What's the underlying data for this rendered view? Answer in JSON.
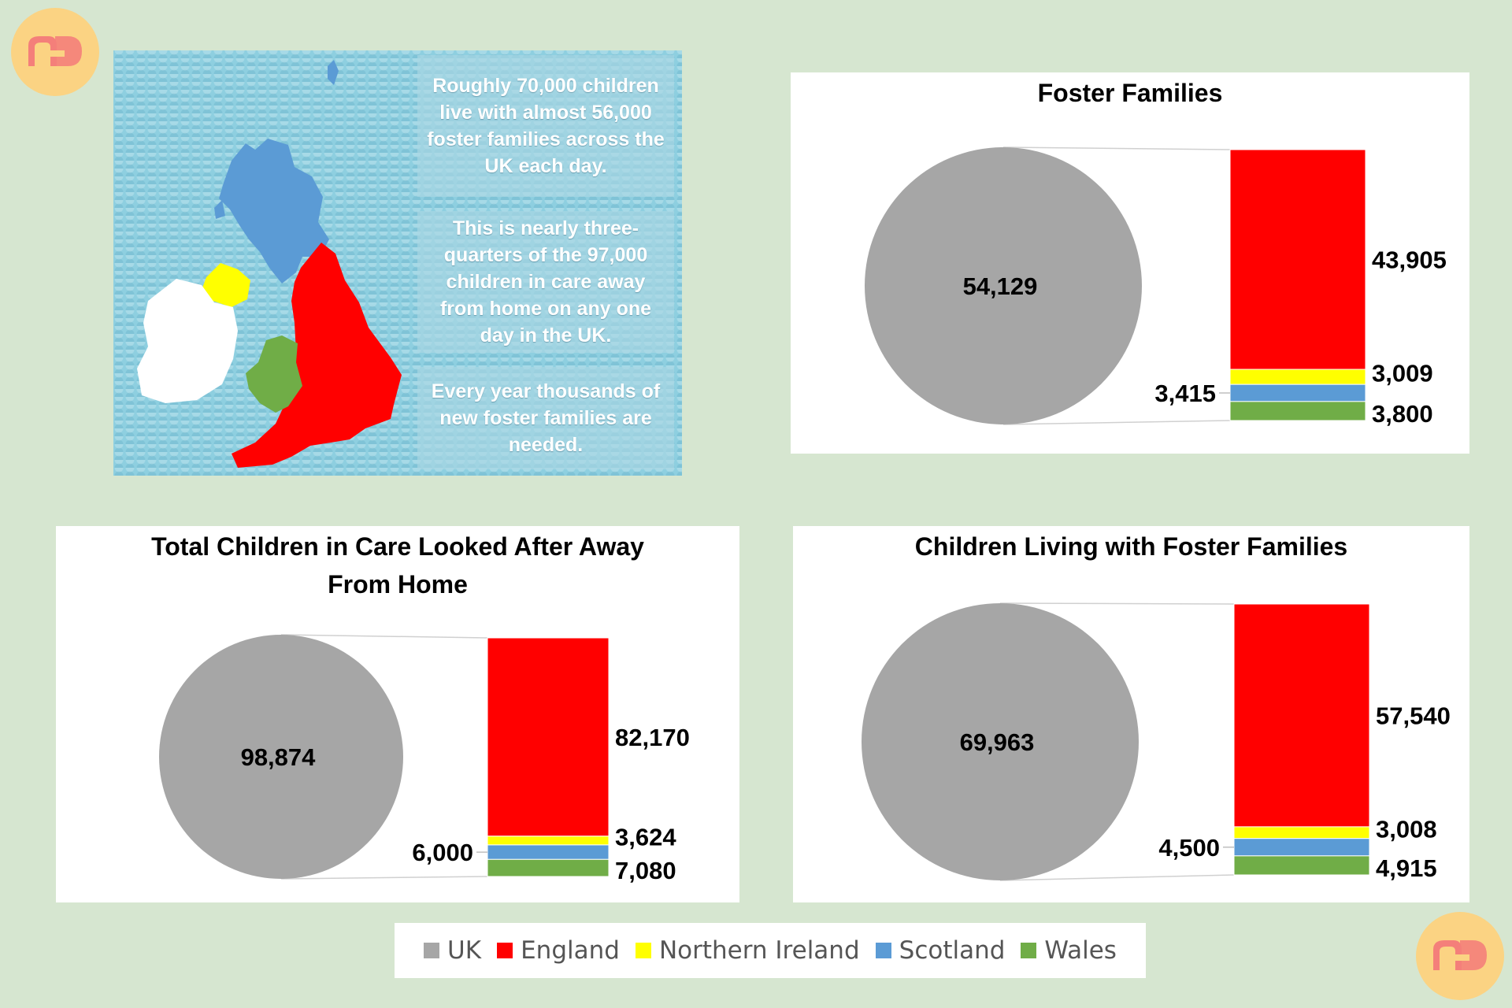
{
  "colors": {
    "UK": "#a6a6a6",
    "England": "#ff0000",
    "Northern Ireland": "#ffff00",
    "Scotland": "#5b9bd5",
    "Wales": "#70ad47",
    "background": "#d6e6d0",
    "logo_circle": "#fbd383",
    "logo_mark": "#f47f7a"
  },
  "logos": {
    "top_left": "nd-logo-icon",
    "bottom_right": "nd-logo-icon"
  },
  "infographic": {
    "map": "uk-map-icon",
    "box1": "Roughly 70,000 children live with almost 56,000 foster families across the UK each day.",
    "box2": "This is nearly three-quarters of the 97,000 children in care away from home on any one day in the UK.",
    "box3": "Every year thousands of new foster families are needed."
  },
  "chart_data": [
    {
      "type": "pie",
      "title": "Foster Families",
      "uk_label": "54,129",
      "series": [
        {
          "name": "UK",
          "value": 54129
        },
        {
          "name": "England",
          "value": 43905
        },
        {
          "name": "Northern Ireland",
          "value": 3009
        },
        {
          "name": "Scotland",
          "value": 3415
        },
        {
          "name": "Wales",
          "value": 3800
        }
      ],
      "labels": {
        "England": "43,905",
        "Northern Ireland": "3,009",
        "Scotland": "3,415",
        "Wales": "3,800"
      }
    },
    {
      "type": "pie",
      "title": "Total Children in Care Looked After Away From Home",
      "uk_label": "98,874",
      "series": [
        {
          "name": "UK",
          "value": 98874
        },
        {
          "name": "England",
          "value": 82170
        },
        {
          "name": "Northern Ireland",
          "value": 3624
        },
        {
          "name": "Scotland",
          "value": 6000
        },
        {
          "name": "Wales",
          "value": 7080
        }
      ],
      "labels": {
        "England": "82,170",
        "Northern Ireland": "3,624",
        "Scotland": "6,000",
        "Wales": "7,080"
      }
    },
    {
      "type": "pie",
      "title": "Children Living with Foster Families",
      "uk_label": "69,963",
      "series": [
        {
          "name": "UK",
          "value": 69963
        },
        {
          "name": "England",
          "value": 57540
        },
        {
          "name": "Northern Ireland",
          "value": 3008
        },
        {
          "name": "Scotland",
          "value": 4500
        },
        {
          "name": "Wales",
          "value": 4915
        }
      ],
      "labels": {
        "England": "57,540",
        "Northern Ireland": "3,008",
        "Scotland": "4,500",
        "Wales": "4,915"
      }
    }
  ],
  "legend": {
    "items": [
      "UK",
      "England",
      "Northern Ireland",
      "Scotland",
      "Wales"
    ]
  }
}
